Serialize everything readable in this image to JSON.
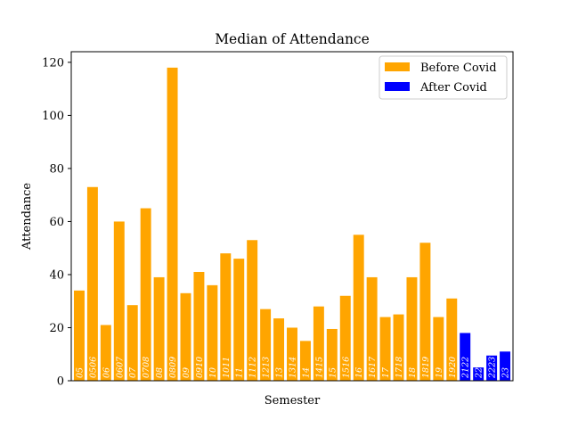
{
  "chart_data": {
    "type": "bar",
    "title": "Median of Attendance",
    "xlabel": "Semester",
    "ylabel": "Attendance",
    "ylim": [
      0,
      124
    ],
    "yticks": [
      0,
      20,
      40,
      60,
      80,
      100,
      120
    ],
    "legend": {
      "placement": "top-right"
    },
    "grid": false,
    "series": [
      {
        "name": "Before Covid",
        "color": "#FFA500"
      },
      {
        "name": "After Covid",
        "color": "#0000FF"
      }
    ],
    "bars": [
      {
        "label": "05",
        "value": 34,
        "series": 0
      },
      {
        "label": "0506",
        "value": 73,
        "series": 0
      },
      {
        "label": "06",
        "value": 21,
        "series": 0
      },
      {
        "label": "0607",
        "value": 60,
        "series": 0
      },
      {
        "label": "07",
        "value": 28.5,
        "series": 0
      },
      {
        "label": "0708",
        "value": 65,
        "series": 0
      },
      {
        "label": "08",
        "value": 39,
        "series": 0
      },
      {
        "label": "0809",
        "value": 118,
        "series": 0
      },
      {
        "label": "09",
        "value": 33,
        "series": 0
      },
      {
        "label": "0910",
        "value": 41,
        "series": 0
      },
      {
        "label": "10",
        "value": 36,
        "series": 0
      },
      {
        "label": "1011",
        "value": 48,
        "series": 0
      },
      {
        "label": "11",
        "value": 46,
        "series": 0
      },
      {
        "label": "1112",
        "value": 53,
        "series": 0
      },
      {
        "label": "1213",
        "value": 27,
        "series": 0
      },
      {
        "label": "13",
        "value": 23.5,
        "series": 0
      },
      {
        "label": "1314",
        "value": 20,
        "series": 0
      },
      {
        "label": "14",
        "value": 15,
        "series": 0
      },
      {
        "label": "1415",
        "value": 28,
        "series": 0
      },
      {
        "label": "15",
        "value": 19.5,
        "series": 0
      },
      {
        "label": "1516",
        "value": 32,
        "series": 0
      },
      {
        "label": "16",
        "value": 55,
        "series": 0
      },
      {
        "label": "1617",
        "value": 39,
        "series": 0
      },
      {
        "label": "17",
        "value": 24,
        "series": 0
      },
      {
        "label": "1718",
        "value": 25,
        "series": 0
      },
      {
        "label": "18",
        "value": 39,
        "series": 0
      },
      {
        "label": "1819",
        "value": 52,
        "series": 0
      },
      {
        "label": "19",
        "value": 24,
        "series": 0
      },
      {
        "label": "1920",
        "value": 31,
        "series": 0
      },
      {
        "label": "2122",
        "value": 18,
        "series": 1
      },
      {
        "label": "22",
        "value": 5,
        "series": 1
      },
      {
        "label": "2223",
        "value": 9.5,
        "series": 1
      },
      {
        "label": "23",
        "value": 11,
        "series": 1
      }
    ]
  }
}
